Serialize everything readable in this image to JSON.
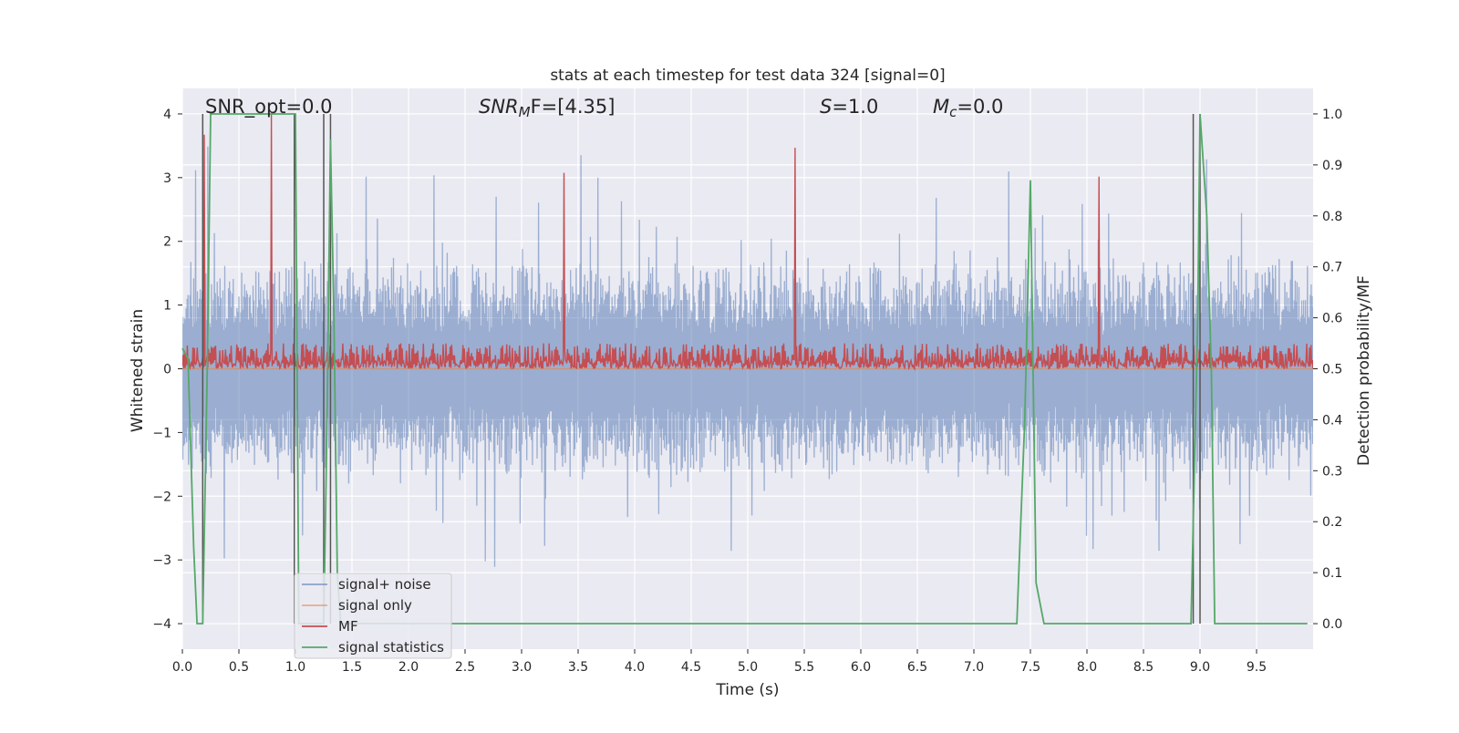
{
  "chart_data": {
    "type": "line",
    "title": "stats at each timestep for test data 324 [signal=0]",
    "xlabel": "Time (s)",
    "ylabel": "Whitened strain",
    "ylabel_right": "Detection probability/MF",
    "xlim": [
      0.0,
      10.0
    ],
    "ylim": [
      -4.4,
      4.4
    ],
    "ylim_right": [
      -0.05,
      1.05
    ],
    "x_ticks": [
      "0.0",
      "0.5",
      "1.0",
      "1.5",
      "2.0",
      "2.5",
      "3.0",
      "3.5",
      "4.0",
      "4.5",
      "5.0",
      "5.5",
      "6.0",
      "6.5",
      "7.0",
      "7.5",
      "8.0",
      "8.5",
      "9.0",
      "9.5"
    ],
    "y_ticks": [
      "−4",
      "−3",
      "−2",
      "−1",
      "0",
      "1",
      "2",
      "3",
      "4"
    ],
    "y_right_ticks": [
      "0.0",
      "0.1",
      "0.2",
      "0.3",
      "0.4",
      "0.5",
      "0.6",
      "0.7",
      "0.8",
      "0.9",
      "1.0"
    ],
    "grid": true,
    "legend_position": "lower-left",
    "annotations": {
      "snr_opt": "SNR_opt=0.0",
      "snr_mf_symbol": "SNR",
      "snr_mf_sub": "M",
      "snr_mf_tail": "F=[4.35]",
      "s_symbol": "S",
      "s_tail": "=1.0",
      "mc_symbol": "M",
      "mc_sub": "c",
      "mc_tail": "=0.0"
    },
    "legend": [
      {
        "label": "signal+ noise",
        "color": "#4c72b0"
      },
      {
        "label": "signal only",
        "color": "#dd8452"
      },
      {
        "label": "MF",
        "color": "#c44e52"
      },
      {
        "label": "signal statistics",
        "color": "#55a868"
      }
    ],
    "noise_envelope": {
      "description_color": "#4c72b0",
      "typical_amplitude": 1.6,
      "peak_amplitude": 3.6
    },
    "mf_band": {
      "min": 0.0,
      "typical_max": 0.55,
      "peak": 1.0
    },
    "signal_statistics": {
      "x": [
        0.0,
        0.05,
        0.1,
        0.13,
        0.18,
        0.22,
        0.25,
        0.98,
        1.0,
        1.03,
        1.06,
        1.25,
        1.28,
        1.31,
        1.34,
        1.37,
        1.4,
        1.45,
        7.38,
        7.45,
        7.5,
        7.55,
        7.62,
        8.92,
        8.98,
        9.0,
        9.06,
        9.1,
        9.13,
        9.95
      ],
      "y": [
        0.54,
        0.52,
        0.15,
        0.0,
        0.0,
        0.5,
        1.0,
        1.0,
        1.0,
        0.0,
        0.0,
        0.0,
        0.4,
        0.95,
        0.6,
        0.1,
        0.0,
        0.0,
        0.0,
        0.4,
        0.87,
        0.08,
        0.0,
        0.0,
        0.6,
        1.0,
        0.8,
        0.5,
        0.0,
        0.0
      ]
    },
    "vertical_markers": [
      0.18,
      0.99,
      1.25,
      1.31,
      8.94,
      9.0
    ]
  }
}
